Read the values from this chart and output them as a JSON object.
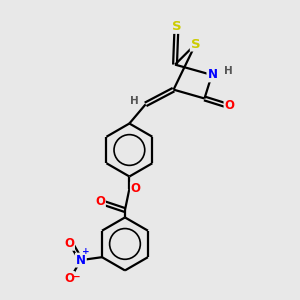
{
  "bg_color": "#e8e8e8",
  "bond_color": "#000000",
  "bond_width": 1.6,
  "atom_colors": {
    "S": "#cccc00",
    "N": "#0000ff",
    "O": "#ff0000",
    "H": "#555555"
  },
  "font_size": 8.5,
  "fig_width": 3.0,
  "fig_height": 3.0,
  "s_color": "#cccc00",
  "n_color": "#0000ff",
  "o_color": "#ff0000",
  "h_color": "#555555"
}
